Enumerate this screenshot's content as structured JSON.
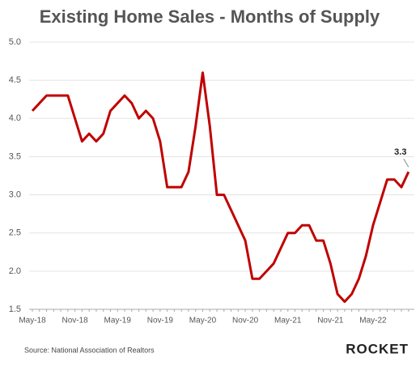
{
  "chart_data": {
    "type": "line",
    "title": "Existing Home Sales - Months of Supply",
    "categories": [
      "May-18",
      null,
      null,
      null,
      null,
      null,
      "Nov-18",
      null,
      null,
      null,
      null,
      null,
      "May-19",
      null,
      null,
      null,
      null,
      null,
      "Nov-19",
      null,
      null,
      null,
      null,
      null,
      "May-20",
      null,
      null,
      null,
      null,
      null,
      "Nov-20",
      null,
      null,
      null,
      null,
      null,
      "May-21",
      null,
      null,
      null,
      null,
      null,
      "Nov-21",
      null,
      null,
      null,
      null,
      null,
      "May-22",
      null,
      null,
      null,
      null,
      null
    ],
    "series": [
      {
        "name": "Months of Supply",
        "color": "#c00000",
        "values": [
          4.1,
          4.2,
          4.3,
          4.3,
          4.3,
          4.3,
          4.0,
          3.7,
          3.8,
          3.7,
          3.8,
          4.1,
          4.2,
          4.3,
          4.2,
          4.0,
          4.1,
          4.0,
          3.7,
          3.1,
          3.1,
          3.1,
          3.3,
          3.9,
          4.6,
          3.9,
          3.0,
          3.0,
          2.8,
          2.6,
          2.4,
          1.9,
          1.9,
          2.0,
          2.1,
          2.3,
          2.5,
          2.5,
          2.6,
          2.6,
          2.4,
          2.4,
          2.1,
          1.7,
          1.6,
          1.7,
          1.9,
          2.2,
          2.6,
          2.9,
          3.2,
          3.2,
          3.1,
          3.3
        ]
      }
    ],
    "ylim": [
      1.5,
      5.0
    ],
    "yticks": [
      1.5,
      {
        "value": 2,
        "label": "2.0"
      },
      2.5,
      {
        "value": 3,
        "label": "3.0"
      },
      3.5,
      {
        "value": 4,
        "label": "4.0"
      },
      4.5,
      {
        "value": 5,
        "label": "5.0"
      }
    ],
    "grid": true,
    "source": "Source: National Association of Realtors",
    "logo": "ROCKET"
  }
}
